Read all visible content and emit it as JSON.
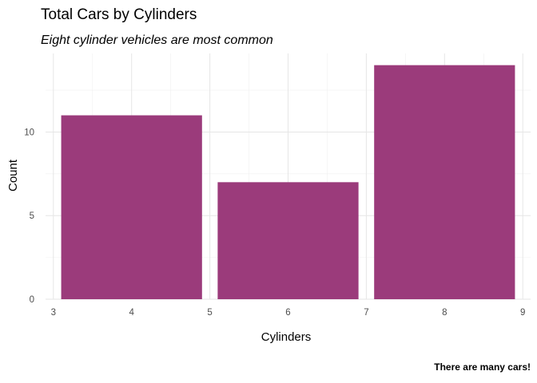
{
  "chart_data": {
    "type": "bar",
    "title": "Total Cars by Cylinders",
    "subtitle": "Eight cylinder vehicles are most common",
    "xlabel": "Cylinders",
    "ylabel": "Count",
    "caption": "There are many cars!",
    "categories": [
      4,
      6,
      8
    ],
    "values": [
      11,
      7,
      14
    ],
    "bar_width": 1.8,
    "bar_color": "#9B3B7B",
    "xlim": [
      2.9,
      9.1
    ],
    "ylim": [
      0,
      14.7
    ],
    "x_ticks": [
      3,
      4,
      5,
      6,
      7,
      8,
      9
    ],
    "y_ticks": [
      0,
      5,
      10
    ],
    "grid": true
  }
}
